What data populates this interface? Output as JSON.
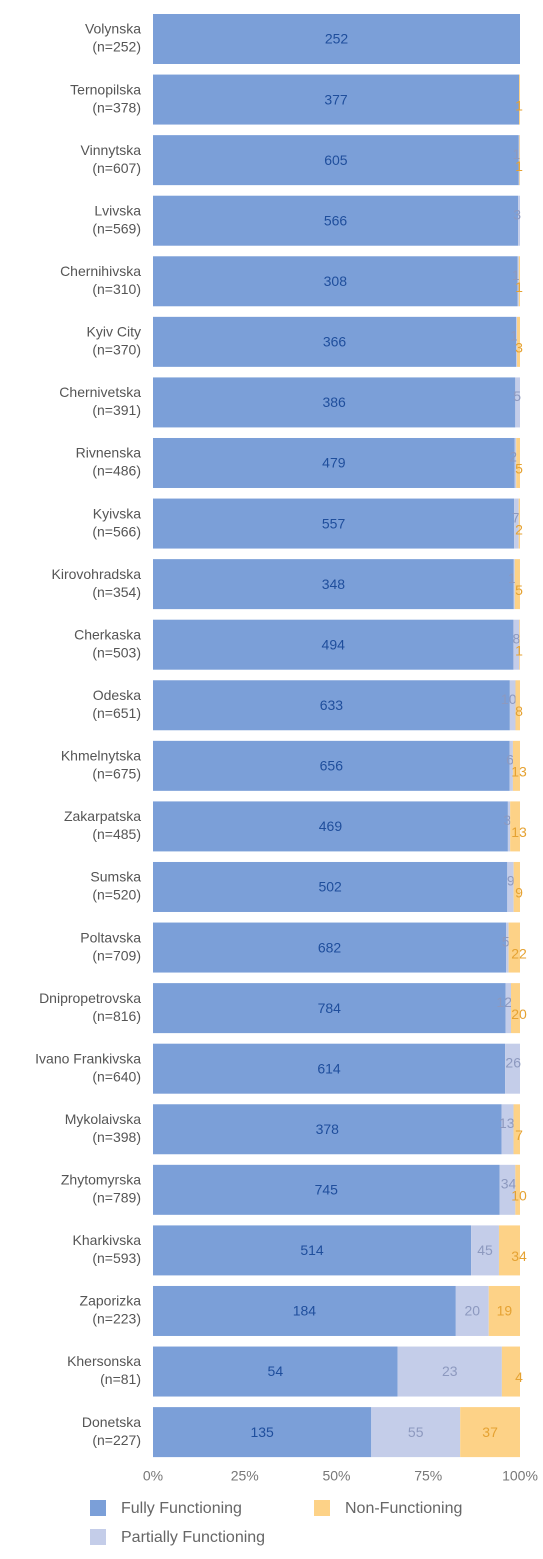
{
  "chart_data": {
    "type": "stacked_bar_horizontal",
    "normalize": "percent",
    "categories": [
      "Volynska",
      "Ternopilska",
      "Vinnytska",
      "Lvivska",
      "Chernihivska",
      "Kyiv City",
      "Chernivetska",
      "Rivnenska",
      "Kyivska",
      "Kirovohradska",
      "Cherkaska",
      "Odeska",
      "Khmelnytska",
      "Zakarpatska",
      "Sumska",
      "Poltavska",
      "Dnipropetrovska",
      "Ivano Frankivska",
      "Mykolaivska",
      "Zhytomyrska",
      "Kharkivska",
      "Zaporizka",
      "Khersonska",
      "Donetska"
    ],
    "category_sublabels": [
      "(n=252)",
      "(n=378)",
      "(n=607)",
      "(n=569)",
      "(n=310)",
      "(n=370)",
      "(n=391)",
      "(n=486)",
      "(n=566)",
      "(n=354)",
      "(n=503)",
      "(n=651)",
      "(n=675)",
      "(n=485)",
      "(n=520)",
      "(n=709)",
      "(n=816)",
      "(n=640)",
      "(n=398)",
      "(n=789)",
      "(n=593)",
      "(n=223)",
      "(n=81)",
      "(n=227)"
    ],
    "series": [
      {
        "name": "Fully Functioning",
        "color": "#7b9fd8",
        "label_color": "#1f4e9c",
        "values": [
          252,
          377,
          605,
          566,
          308,
          366,
          386,
          479,
          557,
          348,
          494,
          633,
          656,
          469,
          502,
          682,
          784,
          614,
          378,
          745,
          514,
          184,
          54,
          135
        ]
      },
      {
        "name": "Partially Functioning",
        "color": "#c4cde9",
        "label_color": "#8d99bf",
        "values": [
          0,
          0,
          1,
          3,
          1,
          1,
          5,
          2,
          7,
          1,
          8,
          10,
          6,
          3,
          9,
          5,
          12,
          26,
          13,
          34,
          45,
          20,
          23,
          55
        ]
      },
      {
        "name": "Non-Functioning",
        "color": "#fdd287",
        "label_color": "#e5a232",
        "values": [
          0,
          1,
          1,
          0,
          1,
          3,
          0,
          5,
          2,
          5,
          1,
          8,
          13,
          13,
          9,
          22,
          20,
          0,
          7,
          10,
          34,
          19,
          4,
          37
        ]
      }
    ],
    "xlim": [
      0,
      100
    ],
    "xticks": [
      {
        "value": 0,
        "label": "0%"
      },
      {
        "value": 25,
        "label": "25%"
      },
      {
        "value": 50,
        "label": "50%"
      },
      {
        "value": 75,
        "label": "75%"
      },
      {
        "value": 100,
        "label": "100%"
      }
    ]
  }
}
